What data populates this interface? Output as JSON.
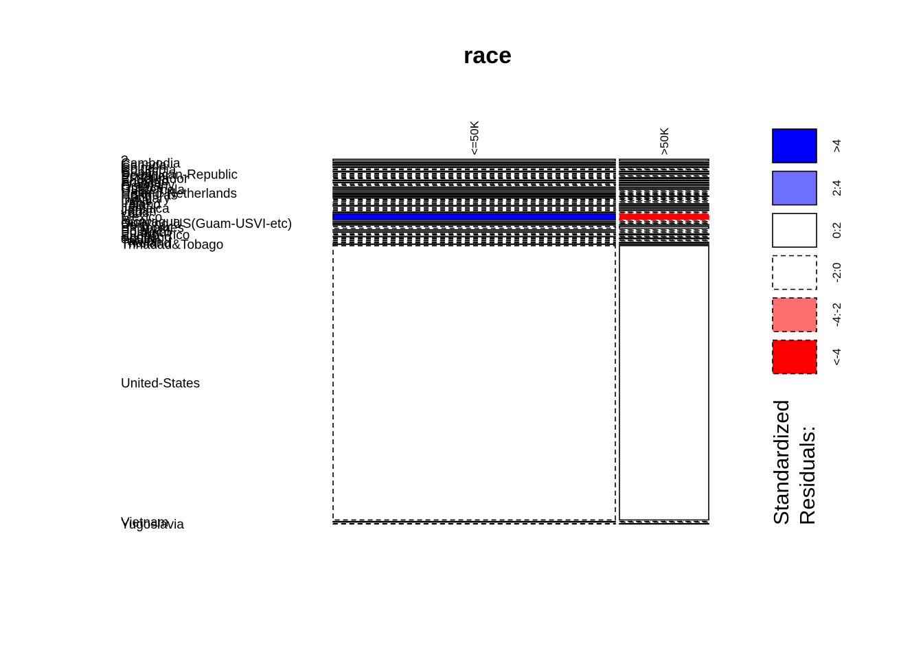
{
  "chart_data": {
    "type": "mosaic",
    "title": "race",
    "columns": [
      "<=50K",
      ">50K"
    ],
    "column_widths": [
      0.75,
      0.25
    ],
    "rows": [
      {
        "label": "?",
        "weight": 0.0055
      },
      {
        "label": "Cambodia",
        "weight": 0.0007
      },
      {
        "label": "Canada",
        "weight": 0.0038
      },
      {
        "label": "China",
        "weight": 0.0023
      },
      {
        "label": "Columbia",
        "weight": 0.0018
      },
      {
        "label": "Cuba",
        "weight": 0.003
      },
      {
        "label": "Dominican-Republic",
        "weight": 0.0022
      },
      {
        "label": "Ecuador",
        "weight": 0.0009
      },
      {
        "label": "El-Salvador",
        "weight": 0.0033
      },
      {
        "label": "England",
        "weight": 0.0028
      },
      {
        "label": "France",
        "weight": 0.0009
      },
      {
        "label": "Germany",
        "weight": 0.0042
      },
      {
        "label": "Greece",
        "weight": 0.001
      },
      {
        "label": "Guatemala",
        "weight": 0.002
      },
      {
        "label": "Haiti",
        "weight": 0.0014
      },
      {
        "label": "Holand-Netherlands",
        "weight": 0.0001
      },
      {
        "label": "Honduras",
        "weight": 0.0004
      },
      {
        "label": "Hong",
        "weight": 0.0006
      },
      {
        "label": "Hungary",
        "weight": 0.0004
      },
      {
        "label": "India",
        "weight": 0.0031
      },
      {
        "label": "Iran",
        "weight": 0.0013
      },
      {
        "label": "Ireland",
        "weight": 0.0008
      },
      {
        "label": "Italy",
        "weight": 0.0022
      },
      {
        "label": "Jamaica",
        "weight": 0.0025
      },
      {
        "label": "Japan",
        "weight": 0.0019
      },
      {
        "label": "Laos",
        "weight": 0.0006
      },
      {
        "label": "Mexico",
        "weight": 0.0195
      },
      {
        "label": "Nicaragua",
        "weight": 0.001
      },
      {
        "label": "Outlying-US(Guam-USVI-etc)",
        "weight": 0.0005
      },
      {
        "label": "Peru",
        "weight": 0.0009
      },
      {
        "label": "Philippines",
        "weight": 0.006
      },
      {
        "label": "Poland",
        "weight": 0.0018
      },
      {
        "label": "Portugal",
        "weight": 0.0014
      },
      {
        "label": "Puerto-Rico",
        "weight": 0.0035
      },
      {
        "label": "Scotland",
        "weight": 0.0004
      },
      {
        "label": "South",
        "weight": 0.0025
      },
      {
        "label": "Taiwan",
        "weight": 0.0016
      },
      {
        "label": "Thailand",
        "weight": 0.0006
      },
      {
        "label": "Trinadad&Tobago",
        "weight": 0.0006
      },
      {
        "label": "United-States",
        "weight": 0.897
      },
      {
        "label": "Vietnam",
        "weight": 0.0021
      },
      {
        "label": "Yugoslavia",
        "weight": 0.0005
      }
    ],
    "residual_classes": {
      "<=50K": [
        "n",
        "n",
        "n",
        "n",
        "d",
        "n",
        "d",
        "d",
        "d",
        "n",
        "n",
        "d",
        "n",
        "n",
        "n",
        "n",
        "n",
        "n",
        "n",
        "d",
        "d",
        "d",
        "n",
        "d",
        "d",
        "n",
        "pos4",
        "n",
        "n",
        "n",
        "d",
        "n",
        "n",
        "d",
        "n",
        "d",
        "d",
        "d",
        "n",
        "d",
        "n",
        "d"
      ],
      ">50K": [
        "n",
        "n",
        "n",
        "n",
        "d",
        "n",
        "n",
        "d",
        "n",
        "n",
        "n",
        "n",
        "n",
        "n",
        "d",
        "d",
        "d",
        "n",
        "d",
        "d",
        "d",
        "n",
        "n",
        "n",
        "n",
        "d",
        "neg4",
        "d",
        "d",
        "n",
        "n",
        "d",
        "d",
        "n",
        "d",
        "n",
        "d",
        "n",
        "n",
        "n",
        "d",
        "n"
      ]
    },
    "legend": {
      "title": [
        "Standardized",
        "Residuals:"
      ],
      "items": [
        {
          "label": ">4",
          "fill": "#0000ff",
          "dashed": false
        },
        {
          "label": "2:4",
          "fill": "#6f6fff",
          "dashed": false
        },
        {
          "label": "0:2",
          "fill": "#ffffff",
          "dashed": false
        },
        {
          "label": "-2:0",
          "fill": "#ffffff",
          "dashed": true
        },
        {
          "label": "-4:-2",
          "fill": "#ff6f6f",
          "dashed": true
        },
        {
          "label": "<-4",
          "fill": "#ff0000",
          "dashed": true
        }
      ]
    }
  }
}
